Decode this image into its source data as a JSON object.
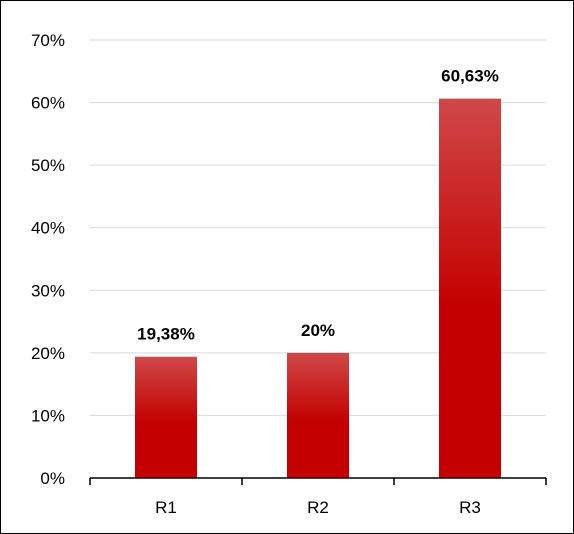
{
  "chart_data": {
    "type": "bar",
    "categories": [
      "R1",
      "R2",
      "R3"
    ],
    "values": [
      19.38,
      20,
      60.63
    ],
    "data_labels": [
      "19,38%",
      "20%",
      "60,63%"
    ],
    "title": "",
    "xlabel": "",
    "ylabel": "",
    "ylim": [
      0,
      70
    ],
    "y_ticks": [
      0,
      10,
      20,
      30,
      40,
      50,
      60,
      70
    ],
    "y_tick_labels": [
      "0%",
      "10%",
      "20%",
      "30%",
      "40%",
      "50%",
      "60%",
      "70%"
    ],
    "grid": true,
    "legend": "none",
    "colors": {
      "bar_top": "#d04848",
      "bar_bottom": "#c40000",
      "grid": "#d9d9d9",
      "axis": "#000000"
    }
  }
}
